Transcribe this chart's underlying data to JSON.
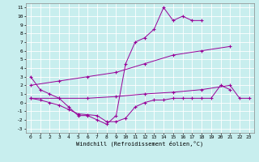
{
  "xlabel": "Windchill (Refroidissement éolien,°C)",
  "bg_color": "#c8eeee",
  "line_color": "#990099",
  "grid_color": "#aadddd",
  "xlim": [
    -0.5,
    23.5
  ],
  "ylim": [
    -3.5,
    11.5
  ],
  "ytick_labels": [
    "",
    "",
    "-1",
    "0",
    "1",
    "2",
    "3",
    "4",
    "5",
    "6",
    "7",
    "8",
    "9",
    "10",
    "11"
  ],
  "yticks": [
    -3,
    -2,
    -1,
    0,
    1,
    2,
    3,
    4,
    5,
    6,
    7,
    8,
    9,
    10,
    11
  ],
  "xticks": [
    0,
    1,
    2,
    3,
    4,
    5,
    6,
    7,
    8,
    9,
    10,
    11,
    12,
    13,
    14,
    15,
    16,
    17,
    18,
    19,
    20,
    21,
    22,
    23
  ],
  "line1_x": [
    0,
    1,
    2,
    3,
    4,
    5,
    6,
    7,
    8,
    9,
    10,
    11,
    12,
    13,
    14,
    15,
    16,
    17,
    18
  ],
  "line1_y": [
    3.0,
    1.5,
    1.0,
    0.5,
    -0.5,
    -1.5,
    -1.5,
    -2.0,
    -2.5,
    -1.5,
    4.5,
    7.0,
    7.5,
    8.5,
    11.0,
    9.5,
    10.0,
    9.5,
    9.5
  ],
  "line2_x": [
    0,
    3,
    6,
    9,
    12,
    15,
    18,
    21
  ],
  "line2_y": [
    2.0,
    2.5,
    3.0,
    3.5,
    4.5,
    5.5,
    6.0,
    6.5
  ],
  "line3_x": [
    0,
    3,
    6,
    9,
    12,
    15,
    18,
    21,
    22,
    23
  ],
  "line3_y": [
    0.5,
    0.5,
    0.5,
    0.7,
    1.0,
    1.2,
    1.5,
    2.0,
    0.5,
    0.5
  ],
  "line4_x": [
    0,
    1,
    2,
    3,
    4,
    5,
    6,
    7,
    8,
    9,
    10,
    11,
    12,
    13,
    14,
    15,
    16,
    17,
    18,
    19,
    20,
    21
  ],
  "line4_y": [
    0.5,
    0.3,
    0.0,
    -0.3,
    -0.8,
    -1.3,
    -1.4,
    -1.5,
    -2.2,
    -2.2,
    -1.8,
    -0.5,
    0.0,
    0.3,
    0.3,
    0.5,
    0.5,
    0.5,
    0.5,
    0.5,
    2.0,
    1.5
  ]
}
